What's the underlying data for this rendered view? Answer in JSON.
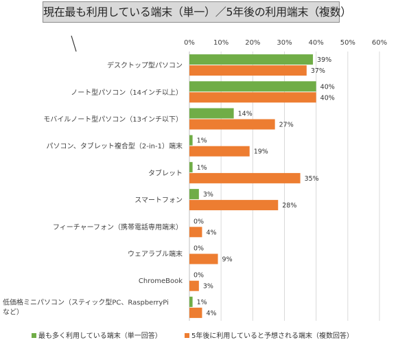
{
  "chart_data": {
    "type": "bar",
    "orientation": "horizontal",
    "title": "現在最も利用している端末（単一）／5年後の利用端末（複数）",
    "categories": [
      [
        "デスクトップ型パソコン"
      ],
      [
        "ノート型パソコン（14インチ以上）"
      ],
      [
        "モバイルノート型パソコン（13インチ以下）"
      ],
      [
        "パソコン、タブレット複合型（2-in-1）端末"
      ],
      [
        "タブレット"
      ],
      [
        "スマートフォン"
      ],
      [
        "フィーチャーフォン（携帯電話専用端末）"
      ],
      [
        "ウェアラブル端末"
      ],
      [
        "ChromeBook"
      ],
      [
        "低価格ミニパソコン（スティック型PC、RaspberryPi",
        "など）"
      ]
    ],
    "series": [
      {
        "name": "最も多く利用している端末（単一回答）",
        "color": "#70ad47",
        "values": [
          39,
          40,
          14,
          1,
          1,
          3,
          0,
          0,
          0,
          1
        ]
      },
      {
        "name": "5年後に利用していると予想される端末（複数回答）",
        "color": "#ed7d31",
        "values": [
          37,
          40,
          27,
          19,
          35,
          28,
          4,
          9,
          3,
          4
        ]
      }
    ],
    "x_ticks": [
      "0%",
      "10%",
      "20%",
      "30%",
      "40%",
      "50%",
      "60%"
    ],
    "xlim": [
      0,
      60
    ],
    "value_suffix": "%",
    "grid": true,
    "legend_position": "bottom"
  }
}
